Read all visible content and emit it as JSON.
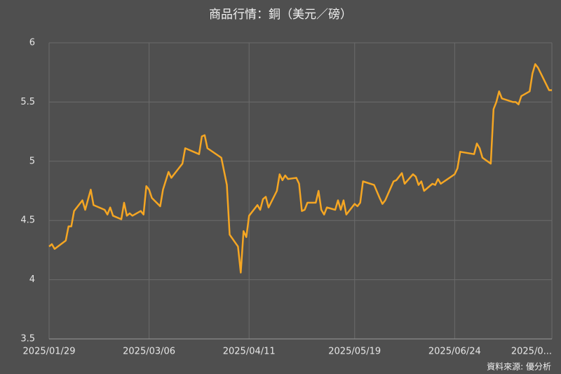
{
  "chart_data": {
    "type": "line",
    "title": "商品行情：銅（美元／磅）",
    "source": "資料來源: 優分析",
    "x": [
      "2025/01/29",
      "2025/01/30",
      "2025/01/31",
      "2025/02/04",
      "2025/02/05",
      "2025/02/06",
      "2025/02/07",
      "2025/02/10",
      "2025/02/11",
      "2025/02/13",
      "2025/02/14",
      "2025/02/18",
      "2025/02/19",
      "2025/02/20",
      "2025/02/21",
      "2025/02/24",
      "2025/02/25",
      "2025/02/26",
      "2025/02/27",
      "2025/02/28",
      "2025/03/03",
      "2025/03/04",
      "2025/03/05",
      "2025/03/06",
      "2025/03/07",
      "2025/03/10",
      "2025/03/11",
      "2025/03/13",
      "2025/03/14",
      "2025/03/18",
      "2025/03/19",
      "2025/03/24",
      "2025/03/25",
      "2025/03/26",
      "2025/03/27",
      "2025/04/01",
      "2025/04/03",
      "2025/04/04",
      "2025/04/07",
      "2025/04/08",
      "2025/04/09",
      "2025/04/10",
      "2025/04/11",
      "2025/04/14",
      "2025/04/15",
      "2025/04/16",
      "2025/04/17",
      "2025/04/18",
      "2025/04/21",
      "2025/04/22",
      "2025/04/23",
      "2025/04/24",
      "2025/04/25",
      "2025/04/28",
      "2025/04/29",
      "2025/04/30",
      "2025/05/01",
      "2025/05/02",
      "2025/05/05",
      "2025/05/06",
      "2025/05/07",
      "2025/05/08",
      "2025/05/09",
      "2025/05/12",
      "2025/05/13",
      "2025/05/14",
      "2025/05/15",
      "2025/05/16",
      "2025/05/19",
      "2025/05/20",
      "2025/05/21",
      "2025/05/22",
      "2025/05/26",
      "2025/05/28",
      "2025/05/29",
      "2025/05/30",
      "2025/06/02",
      "2025/06/03",
      "2025/06/05",
      "2025/06/06",
      "2025/06/09",
      "2025/06/10",
      "2025/06/11",
      "2025/06/12",
      "2025/06/13",
      "2025/06/16",
      "2025/06/17",
      "2025/06/18",
      "2025/06/19",
      "2025/06/24",
      "2025/06/25",
      "2025/06/26",
      "2025/07/01",
      "2025/07/02",
      "2025/07/03",
      "2025/07/04",
      "2025/07/07",
      "2025/07/08",
      "2025/07/09",
      "2025/07/10",
      "2025/07/11",
      "2025/07/15",
      "2025/07/16",
      "2025/07/17",
      "2025/07/18",
      "2025/07/21",
      "2025/07/22",
      "2025/07/23",
      "2025/07/24",
      "2025/07/28",
      "2025/07/29"
    ],
    "series": [
      {
        "color": "#f5a623",
        "values": [
          4.28,
          4.3,
          4.26,
          4.33,
          4.45,
          4.45,
          4.58,
          4.67,
          4.59,
          4.76,
          4.63,
          4.59,
          4.55,
          4.61,
          4.54,
          4.51,
          4.65,
          4.54,
          4.56,
          4.54,
          4.58,
          4.55,
          4.79,
          4.76,
          4.69,
          4.62,
          4.76,
          4.91,
          4.86,
          4.98,
          5.11,
          5.06,
          5.21,
          5.22,
          5.11,
          5.03,
          4.8,
          4.38,
          4.28,
          4.06,
          4.41,
          4.36,
          4.54,
          4.63,
          4.59,
          4.68,
          4.7,
          4.61,
          4.75,
          4.89,
          4.84,
          4.88,
          4.85,
          4.86,
          4.81,
          4.58,
          4.59,
          4.65,
          4.65,
          4.75,
          4.59,
          4.55,
          4.61,
          4.59,
          4.67,
          4.59,
          4.67,
          4.55,
          4.64,
          4.62,
          4.65,
          4.83,
          4.8,
          4.69,
          4.64,
          4.67,
          4.83,
          4.84,
          4.9,
          4.81,
          4.89,
          4.87,
          4.8,
          4.83,
          4.75,
          4.81,
          4.8,
          4.85,
          4.81,
          4.89,
          4.94,
          5.08,
          5.06,
          5.15,
          5.11,
          5.03,
          4.98,
          5.44,
          5.5,
          5.59,
          5.53,
          5.5,
          5.5,
          5.48,
          5.55,
          5.59,
          5.74,
          5.82,
          5.79,
          5.6,
          5.6
        ]
      }
    ],
    "xlim": [
      "2025/01/29",
      "2025/07/29"
    ],
    "xticks": [
      "2025/01/29",
      "2025/03/06",
      "2025/04/11",
      "2025/05/19",
      "2025/06/24",
      {
        "value": "2025/07/29",
        "label": "2025/0..."
      }
    ],
    "ylim": [
      3.5,
      6
    ],
    "yticks": [
      3.5,
      4,
      4.5,
      5,
      5.5,
      6
    ],
    "grid": true
  }
}
